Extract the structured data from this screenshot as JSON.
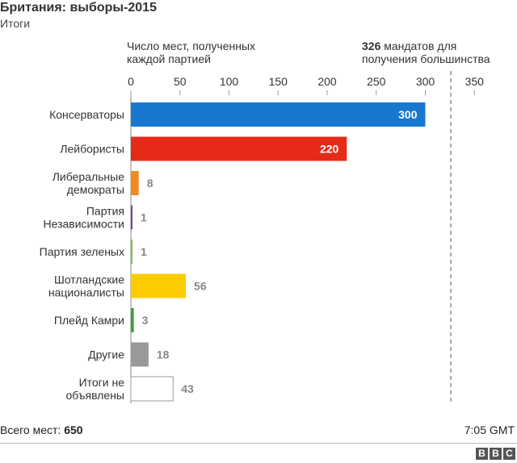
{
  "header": {
    "title": "Британия: выборы-2015",
    "subtitle": "Итоги"
  },
  "annotations": {
    "axis_caption_line1": "Число мест, полученных",
    "axis_caption_line2": "каждой партией",
    "majority_value": "326",
    "majority_line1_rest": " мандатов для",
    "majority_line2": "получения большинства"
  },
  "footer": {
    "total_label": "Всего мест: ",
    "total_value": "650",
    "time": "7:05 GMT",
    "logo": [
      "B",
      "B",
      "C"
    ]
  },
  "chart_data": {
    "type": "bar",
    "orientation": "horizontal",
    "categories": [
      [
        "Консерваторы"
      ],
      [
        "Лейбористы"
      ],
      [
        "Либеральные",
        "демократы"
      ],
      [
        "Партия",
        "Независимости"
      ],
      [
        "Партия зеленых"
      ],
      [
        "Шотландские",
        "националисты"
      ],
      [
        "Плейд Камри"
      ],
      [
        "Другие"
      ],
      [
        "Итоги не",
        "объявлены"
      ]
    ],
    "values": [
      300,
      220,
      8,
      1,
      1,
      56,
      3,
      18,
      43
    ],
    "colors": [
      "#1878d0",
      "#e52b18",
      "#f08a1e",
      "#7e3f98",
      "#7fc242",
      "#fccc00",
      "#3e9e37",
      "#999999",
      "#ffffff"
    ],
    "label_inside": [
      true,
      true,
      false,
      false,
      false,
      false,
      false,
      false,
      false
    ],
    "xlim": [
      0,
      350
    ],
    "xticks": [
      0,
      50,
      100,
      150,
      200,
      250,
      300,
      350
    ],
    "majority_line": 326
  }
}
